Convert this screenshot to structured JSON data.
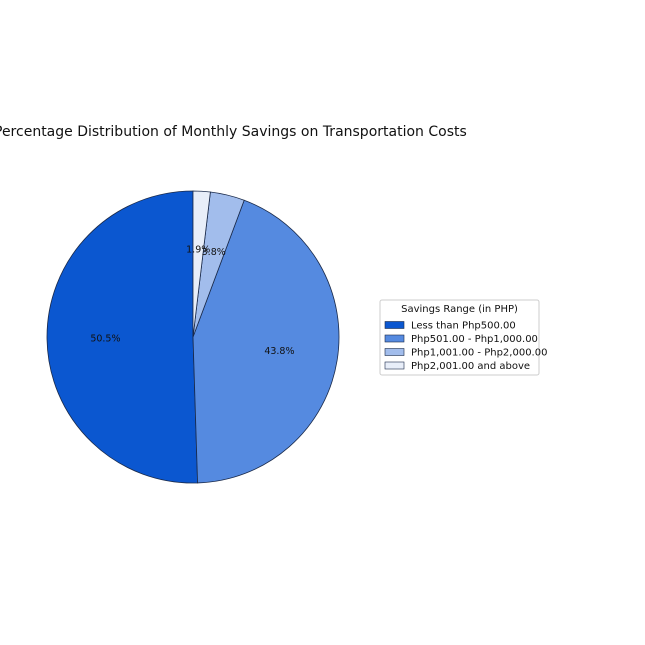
{
  "chart_data": {
    "type": "pie",
    "title": "Percentage Distribution of Monthly Savings on Transportation Costs",
    "categories": [
      "Less than Php500.00",
      "Php501.00 - Php1,000.00",
      "Php1,001.00 - Php2,000.00",
      "Php2,001.00 and above"
    ],
    "values": [
      50.5,
      43.8,
      3.8,
      1.9
    ],
    "labels": [
      "50.5%",
      "43.8%",
      "3.8%",
      "1.9%"
    ],
    "colors": [
      "#0b57d0",
      "#558ae0",
      "#a2bdec",
      "#e8eef9"
    ],
    "legend": {
      "title": "Savings Range (in PHP)",
      "placement": "right"
    },
    "start_angle_deg": 90,
    "direction": "clockwise"
  }
}
